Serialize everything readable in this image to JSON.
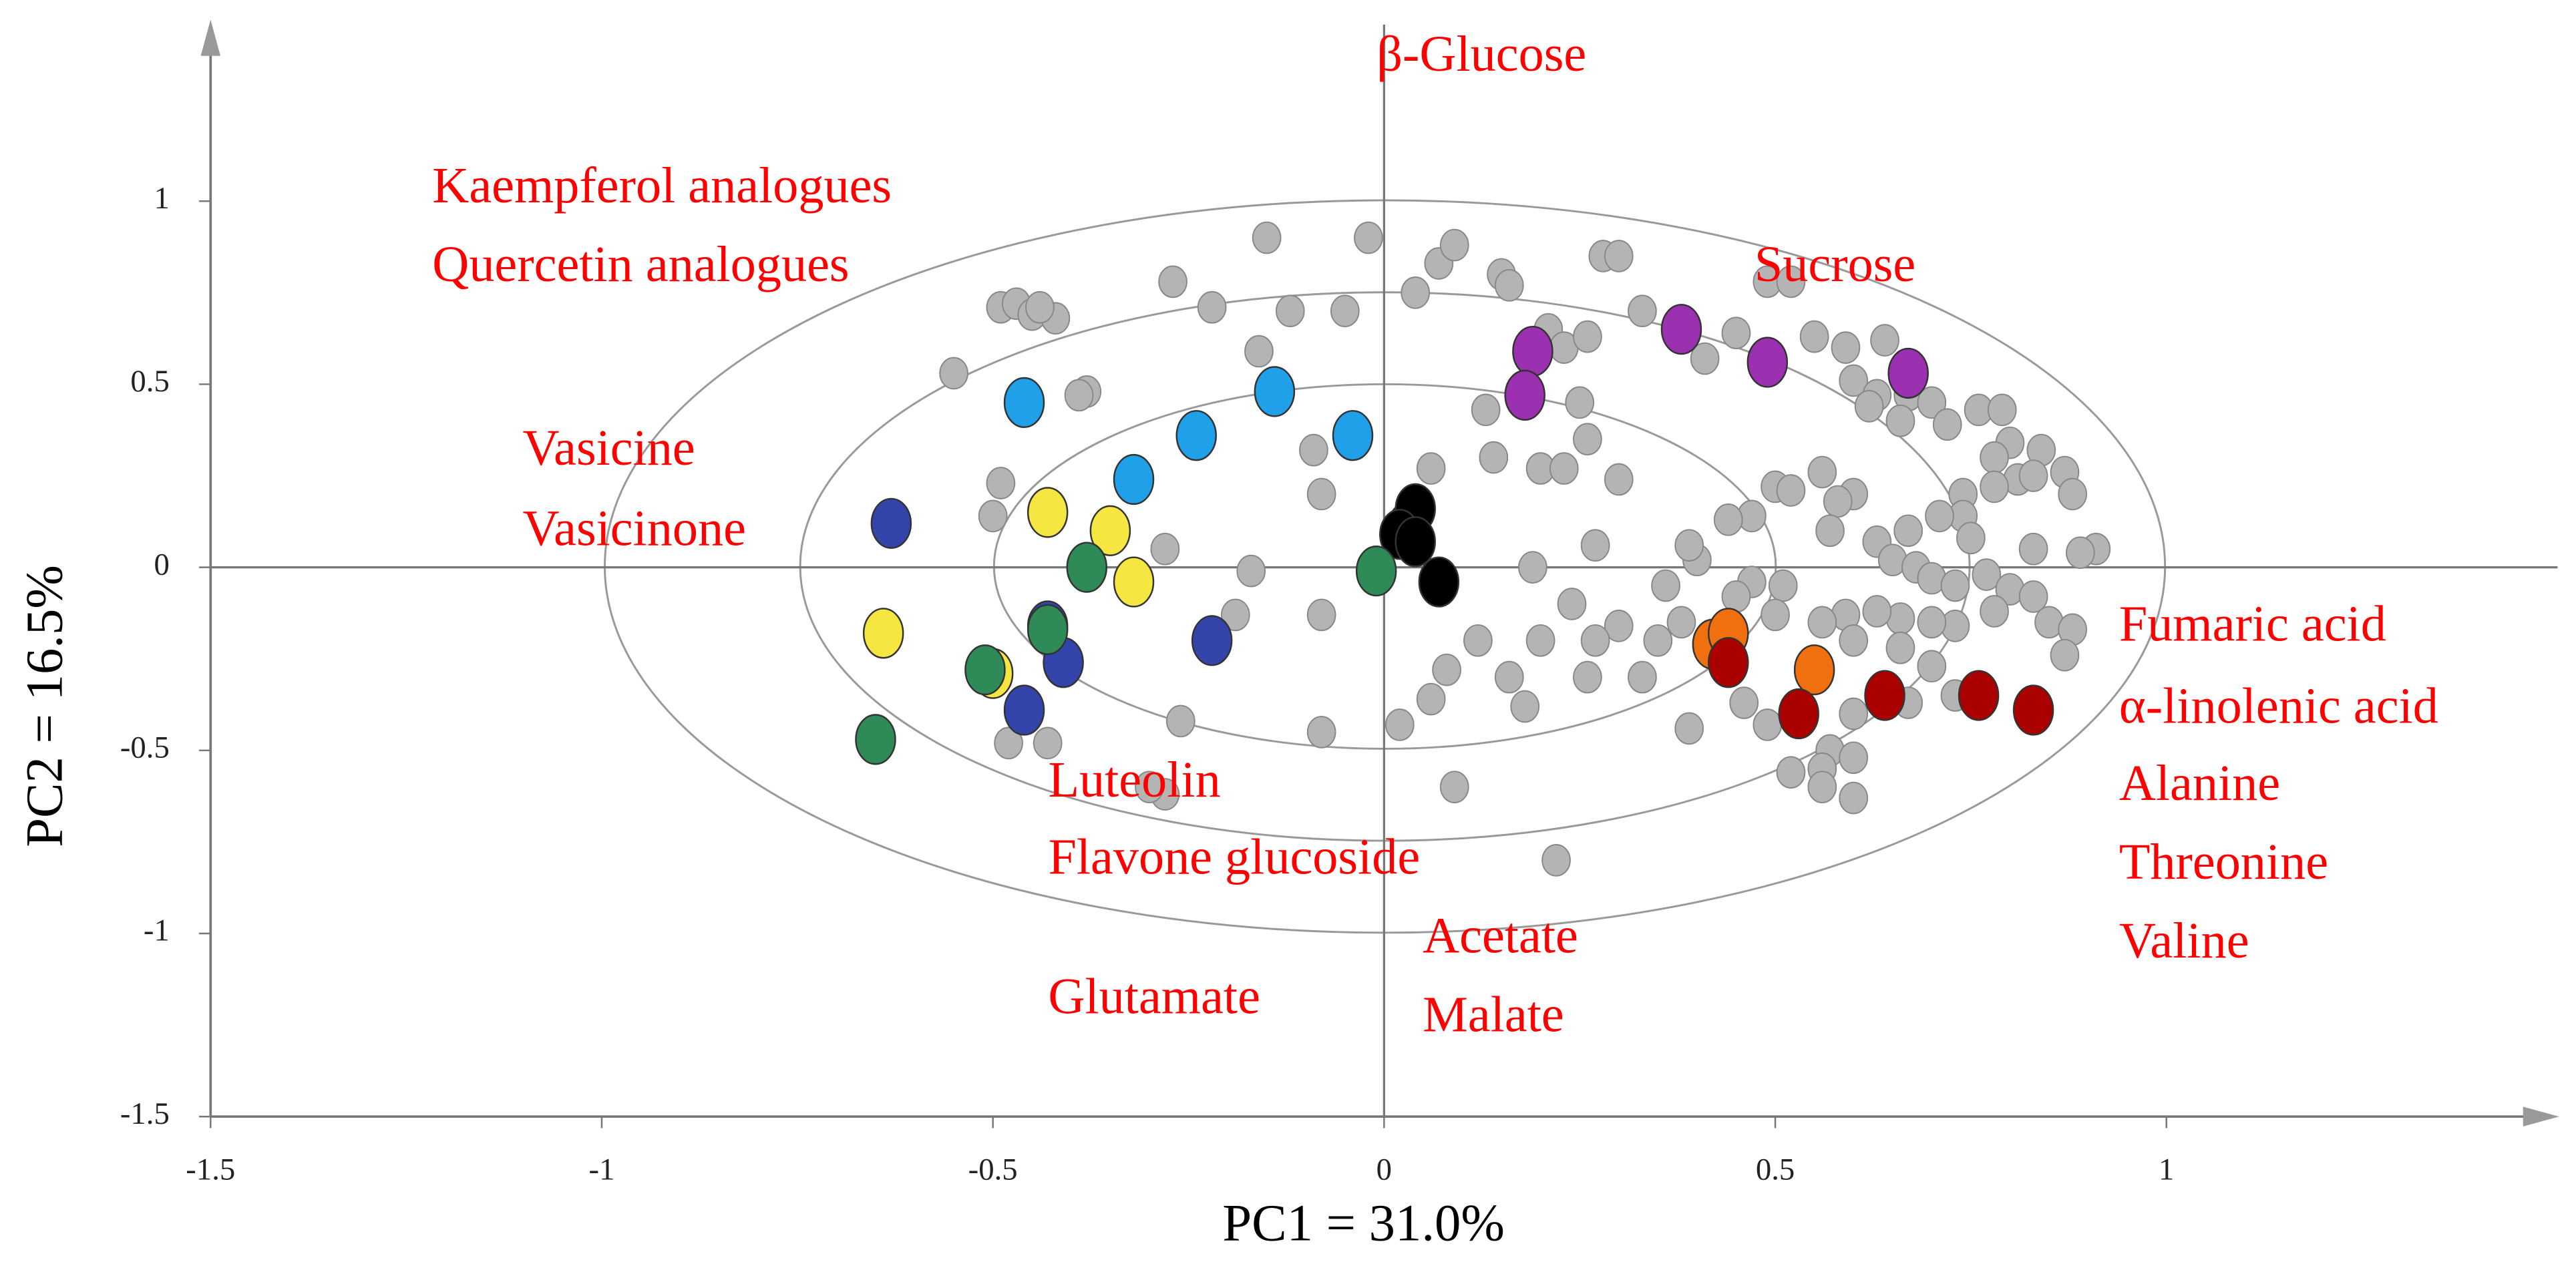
{
  "chart_data": {
    "type": "scatter",
    "xlabel": "PC1 = 31.0%",
    "ylabel": "PC2 = 16.5%",
    "xlim": [
      -1.5,
      1.5
    ],
    "ylim": [
      -1.5,
      1.5
    ],
    "xticks": [
      -1.5,
      -1,
      -0.5,
      0,
      0.5,
      1
    ],
    "yticks": [
      -1.5,
      -1,
      -0.5,
      0,
      0.5,
      1
    ],
    "annotations": [
      "β-Glucose",
      "Kaempferol analogues",
      "Quercetin analogues",
      "Sucrose",
      "Vasicine",
      "Vasicinone",
      "Fumaric acid",
      "α-linolenic acid",
      "Alanine",
      "Threonine",
      "Valine",
      "Luteolin",
      "Flavone glucoside",
      "Glutamate",
      "Acetate",
      "Malate"
    ],
    "series": [
      {
        "color": "#b4b4b4",
        "x": [
          -0.55,
          -0.49,
          -0.47,
          -0.45,
          -0.42,
          -0.44,
          -0.38,
          -0.39,
          -0.22,
          -0.15,
          -0.16,
          -0.12,
          -0.05,
          -0.02,
          0.07,
          0.09,
          0.15,
          0.16,
          0.13,
          0.06,
          0.14,
          0.2,
          0.23,
          0.26,
          0.25,
          0.3,
          -0.09,
          -0.08,
          0.04,
          -0.27,
          0.21,
          0.23,
          0.26,
          0.28,
          0.3,
          0.33,
          0.41,
          0.45,
          0.49,
          0.52,
          0.55,
          0.59,
          0.6,
          0.63,
          0.64,
          0.67,
          0.7,
          0.62,
          0.66,
          0.72,
          0.76,
          0.79,
          0.8,
          0.84,
          0.87,
          0.78,
          0.81,
          0.83,
          0.88,
          0.78,
          0.74,
          0.74,
          0.71,
          0.75,
          0.67,
          0.6,
          0.58,
          0.56,
          0.5,
          0.52,
          0.47,
          0.44,
          0.57,
          0.63,
          0.65,
          0.68,
          0.7,
          0.73,
          0.77,
          0.8,
          0.83,
          0.85,
          0.88,
          0.87,
          0.78,
          0.73,
          0.7,
          0.66,
          0.63,
          0.59,
          0.56,
          0.6,
          0.66,
          0.7,
          0.73,
          0.67,
          0.6,
          0.57,
          0.6,
          0.56,
          0.52,
          0.49,
          0.46,
          0.39,
          0.35,
          0.3,
          0.33,
          0.27,
          0.24,
          0.26,
          0.2,
          0.18,
          0.12,
          0.08,
          0.06,
          0.02,
          0.09,
          0.16,
          0.19,
          0.27,
          0.4,
          0.39,
          0.36,
          0.38,
          0.47,
          0.45,
          0.51,
          0.5,
          -0.08,
          -0.08,
          -0.26,
          -0.28,
          -0.3,
          -0.43,
          -0.48,
          -0.49,
          -0.5,
          -0.28,
          -0.17,
          -0.19,
          0.22,
          0.91,
          0.89,
          0.83,
          0.6,
          0.56
        ],
        "values": [
          0.53,
          0.71,
          0.72,
          0.69,
          0.68,
          0.71,
          0.48,
          0.47,
          0.71,
          0.9,
          0.59,
          0.7,
          0.7,
          0.9,
          0.83,
          0.88,
          0.8,
          0.77,
          0.43,
          0.27,
          0.3,
          0.27,
          0.27,
          0.35,
          0.45,
          0.24,
          0.32,
          0.2,
          0.75,
          0.78,
          0.65,
          0.6,
          0.63,
          0.85,
          0.85,
          0.7,
          0.57,
          0.64,
          0.78,
          0.78,
          0.63,
          0.6,
          0.51,
          0.47,
          0.62,
          0.47,
          0.45,
          0.44,
          0.4,
          0.39,
          0.43,
          0.43,
          0.34,
          0.32,
          0.26,
          0.3,
          0.24,
          0.25,
          0.2,
          0.22,
          0.2,
          0.14,
          0.14,
          0.08,
          0.1,
          0.2,
          0.18,
          0.26,
          0.22,
          0.21,
          0.14,
          0.13,
          0.1,
          0.07,
          0.02,
          0.0,
          -0.03,
          -0.05,
          -0.02,
          -0.06,
          -0.08,
          -0.15,
          -0.17,
          -0.24,
          -0.12,
          -0.16,
          -0.15,
          -0.14,
          -0.12,
          -0.13,
          -0.15,
          -0.2,
          -0.22,
          -0.27,
          -0.35,
          -0.37,
          -0.4,
          -0.5,
          -0.52,
          -0.55,
          -0.56,
          -0.43,
          -0.37,
          -0.44,
          -0.2,
          -0.16,
          -0.3,
          -0.2,
          -0.1,
          -0.3,
          -0.2,
          -0.38,
          -0.2,
          -0.28,
          -0.36,
          -0.43,
          -0.6,
          -0.3,
          0.0,
          0.06,
          0.02,
          0.06,
          -0.05,
          -0.15,
          -0.04,
          -0.08,
          -0.05,
          -0.13,
          -0.13,
          -0.45,
          -0.42,
          -0.62,
          -0.6,
          -0.48,
          -0.48,
          0.23,
          0.14,
          0.05,
          -0.01,
          -0.13,
          -0.8,
          0.05,
          0.04,
          0.05,
          -0.63,
          -0.6
        ]
      },
      {
        "color": "#1fa0e8",
        "x": [
          -0.46,
          -0.32,
          -0.24,
          -0.14,
          -0.04
        ],
        "values": [
          0.45,
          0.24,
          0.36,
          0.48,
          0.36
        ]
      },
      {
        "color": "#9b30b0",
        "x": [
          0.19,
          0.18,
          0.38,
          0.49,
          0.67
        ],
        "values": [
          0.59,
          0.47,
          0.65,
          0.56,
          0.53
        ]
      },
      {
        "color": "#000000",
        "x": [
          0.03,
          0.04,
          0.02,
          0.04,
          0.07
        ],
        "values": [
          0.11,
          0.16,
          0.09,
          0.07,
          -0.04
        ]
      },
      {
        "color": "#3344aa",
        "x": [
          -0.63,
          -0.43,
          -0.41,
          -0.46,
          -0.22
        ],
        "values": [
          0.12,
          -0.16,
          -0.26,
          -0.39,
          -0.2
        ]
      },
      {
        "color": "#f5e642",
        "x": [
          -0.43,
          -0.35,
          -0.32,
          -0.64,
          -0.5
        ],
        "values": [
          0.15,
          0.1,
          -0.04,
          -0.18,
          -0.29
        ]
      },
      {
        "color": "#2e8b57",
        "x": [
          -0.38,
          -0.43,
          -0.51,
          -0.65,
          -0.01
        ],
        "values": [
          0.0,
          -0.17,
          -0.28,
          -0.47,
          -0.01
        ]
      },
      {
        "color": "#f07010",
        "x": [
          0.42,
          0.44,
          0.55
        ],
        "values": [
          -0.21,
          -0.18,
          -0.28
        ]
      },
      {
        "color": "#aa0000",
        "x": [
          0.44,
          0.53,
          0.64,
          0.76,
          0.83
        ],
        "values": [
          -0.26,
          -0.4,
          -0.35,
          -0.35,
          -0.39
        ]
      }
    ]
  }
}
